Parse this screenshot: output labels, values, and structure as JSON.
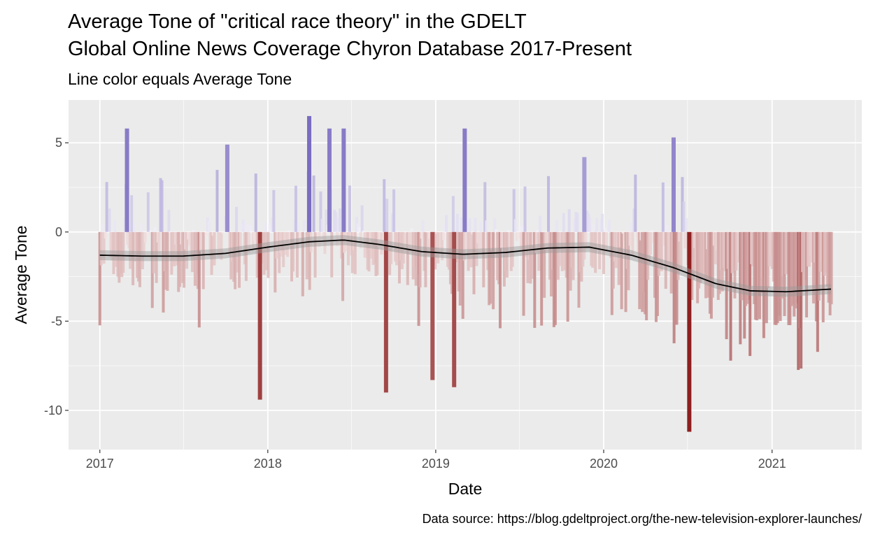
{
  "chart_data": {
    "type": "bar",
    "title_line1": "Average Tone of \"critical race theory\" in the GDELT",
    "title_line2": "Global Online News Coverage Chyron Database 2017-Present",
    "subtitle": "Line color equals Average Tone",
    "xlabel": "Date",
    "ylabel": "Average Tone",
    "caption": "Data source: https://blog.gdeltproject.org/the-new-television-explorer-launches/",
    "xlim": [
      "2016-10-25",
      "2021-07-15"
    ],
    "ylim": [
      -12.2,
      7.4
    ],
    "x_ticks": [
      {
        "date": "2017-01-01",
        "label": "2017"
      },
      {
        "date": "2018-01-01",
        "label": "2018"
      },
      {
        "date": "2019-01-01",
        "label": "2019"
      },
      {
        "date": "2020-01-01",
        "label": "2020"
      },
      {
        "date": "2021-01-01",
        "label": "2021"
      }
    ],
    "y_ticks": [
      {
        "value": 5,
        "label": "5"
      },
      {
        "value": 0,
        "label": "0"
      },
      {
        "value": -5,
        "label": "-5"
      },
      {
        "value": -10,
        "label": "-10"
      }
    ],
    "minor_x": [
      "2017-07-02",
      "2018-07-02",
      "2019-07-02",
      "2020-07-01",
      "2021-07-01"
    ],
    "minor_y": [
      2.5,
      -2.5,
      -7.5
    ],
    "grid": true,
    "date_range": [
      "2017-01-01",
      "2021-05-10"
    ],
    "highlight_values": [
      {
        "date": "2017-03-01",
        "value": 5.8
      },
      {
        "date": "2017-10-05",
        "value": 4.9
      },
      {
        "date": "2017-12-15",
        "value": -9.4
      },
      {
        "date": "2018-04-01",
        "value": 6.5
      },
      {
        "date": "2018-05-15",
        "value": 5.8
      },
      {
        "date": "2018-06-15",
        "value": 5.8
      },
      {
        "date": "2018-09-15",
        "value": -9.0
      },
      {
        "date": "2018-12-25",
        "value": -8.3
      },
      {
        "date": "2019-03-05",
        "value": 5.8
      },
      {
        "date": "2019-02-10",
        "value": -8.7
      },
      {
        "date": "2019-11-20",
        "value": 4.2
      },
      {
        "date": "2020-06-01",
        "value": 5.3
      },
      {
        "date": "2020-07-05",
        "value": -11.2
      }
    ],
    "smooth_line": [
      {
        "x": "2017-01-01",
        "y": -1.3
      },
      {
        "x": "2017-04-01",
        "y": -1.35
      },
      {
        "x": "2017-07-01",
        "y": -1.35
      },
      {
        "x": "2017-10-01",
        "y": -1.2
      },
      {
        "x": "2018-01-01",
        "y": -0.85
      },
      {
        "x": "2018-04-01",
        "y": -0.55
      },
      {
        "x": "2018-06-15",
        "y": -0.45
      },
      {
        "x": "2018-09-01",
        "y": -0.7
      },
      {
        "x": "2018-12-01",
        "y": -1.1
      },
      {
        "x": "2019-03-01",
        "y": -1.25
      },
      {
        "x": "2019-06-01",
        "y": -1.15
      },
      {
        "x": "2019-09-01",
        "y": -0.9
      },
      {
        "x": "2019-12-01",
        "y": -0.85
      },
      {
        "x": "2020-03-01",
        "y": -1.3
      },
      {
        "x": "2020-06-01",
        "y": -2.0
      },
      {
        "x": "2020-09-01",
        "y": -2.9
      },
      {
        "x": "2020-11-15",
        "y": -3.3
      },
      {
        "x": "2021-02-01",
        "y": -3.35
      },
      {
        "x": "2021-05-10",
        "y": -3.2
      }
    ],
    "colors": {
      "panel": "#ebebeb",
      "grid": "#ffffff",
      "positive": "#7b6cc0",
      "negative": "#8b1a1a",
      "line": "#000000",
      "ribbon": "#999999"
    }
  }
}
